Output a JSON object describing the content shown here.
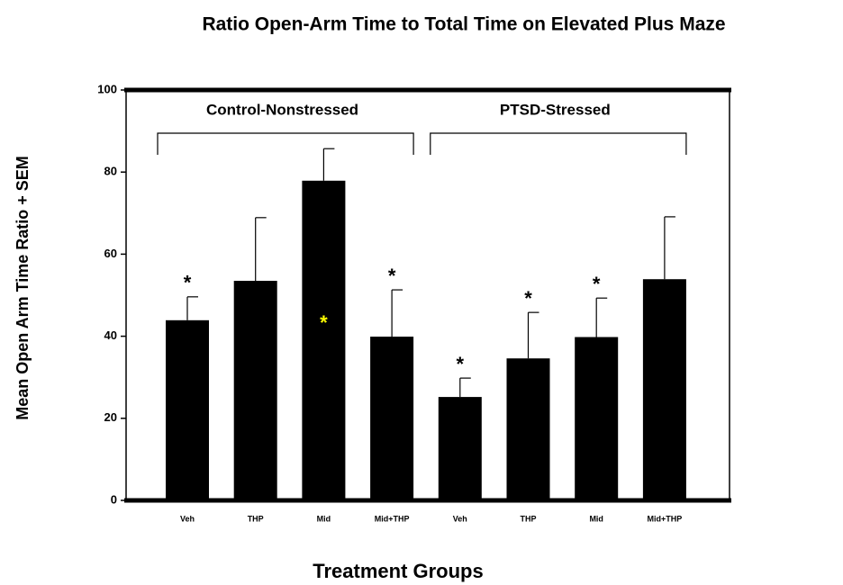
{
  "chart_data": {
    "type": "bar",
    "title": "Ratio Open-Arm Time to Total Time on Elevated Plus Maze",
    "x_label": "Treatment Groups",
    "y_label": "Mean Open Arm Time Ratio + SEM",
    "categories": [
      "Veh",
      "THP",
      "Mid",
      "Mid+THP",
      "Veh",
      "THP",
      "Mid",
      "Mid+THP"
    ],
    "values": [
      43.9,
      53.5,
      77.9,
      39.9,
      25.2,
      34.6,
      39.8,
      53.9
    ],
    "errors": [
      5.7,
      15.4,
      7.8,
      11.4,
      4.6,
      11.2,
      9.5,
      15.2
    ],
    "color": "#000000",
    "markers": [
      "*",
      null,
      null,
      "*",
      "*",
      "*",
      "*",
      null
    ],
    "inner_markers": [
      null,
      null,
      "*",
      null,
      null,
      null,
      null,
      null
    ],
    "inner_marker_color": "#ffff00",
    "groups": [
      {
        "label": "Control-Nonstressed",
        "categories": [
          0,
          3
        ]
      },
      {
        "label": "PTSD-Stressed",
        "categories": [
          4,
          7
        ]
      }
    ],
    "ylim": [
      0,
      100
    ],
    "yticks": [
      0,
      20,
      40,
      60,
      80,
      100
    ],
    "grid": false
  }
}
